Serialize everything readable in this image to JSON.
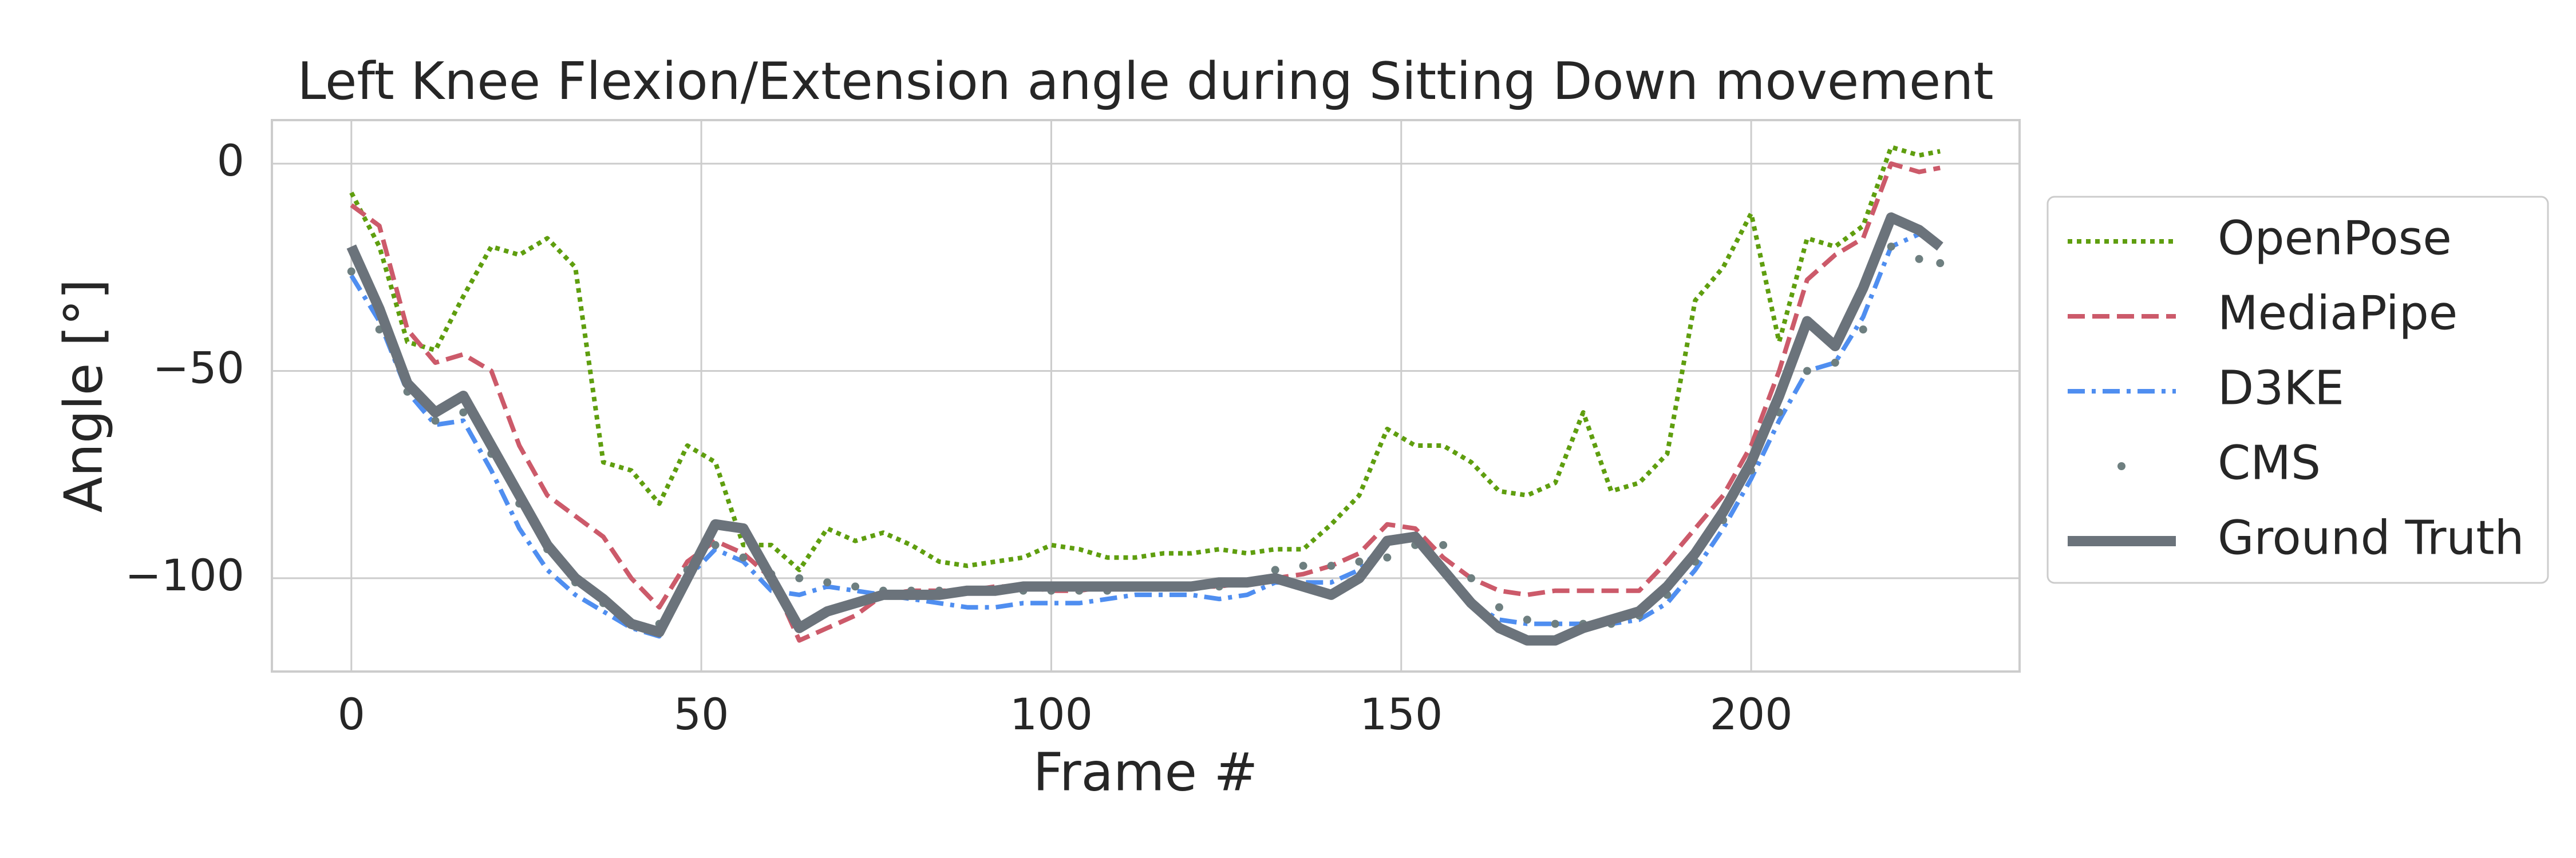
{
  "chart_data": {
    "type": "line",
    "title": "Left Knee Flexion/Extension angle during Sitting Down movement",
    "xlabel": "Frame #",
    "ylabel": "Angle [°]",
    "xlim": [
      -11.35,
      238.35
    ],
    "ylim": [
      -122.5,
      10.5
    ],
    "xticks": [
      0,
      50,
      100,
      150,
      200
    ],
    "yticks": [
      0,
      {
        "value": -50,
        "label": "−50"
      },
      {
        "value": -100,
        "label": "−100"
      }
    ],
    "grid": true,
    "legend": "outside right",
    "x": [
      0,
      4,
      8,
      12,
      16,
      20,
      24,
      28,
      32,
      36,
      40,
      44,
      48,
      52,
      56,
      60,
      64,
      68,
      72,
      76,
      80,
      84,
      88,
      92,
      96,
      100,
      104,
      108,
      112,
      116,
      120,
      124,
      128,
      132,
      136,
      140,
      144,
      148,
      152,
      156,
      160,
      164,
      168,
      172,
      176,
      180,
      184,
      188,
      192,
      196,
      200,
      204,
      208,
      212,
      216,
      220,
      224,
      227
    ],
    "series": [
      {
        "name": "OpenPose",
        "color": "#5f9e0f",
        "linestyle": "dotted",
        "values": [
          -7,
          -20,
          -43,
          -45,
          -32,
          -20,
          -22,
          -18,
          -25,
          -72,
          -74,
          -82,
          -68,
          -72,
          -92,
          -92,
          -98,
          -88,
          -91,
          -89,
          -92,
          -96,
          -97,
          -96,
          -95,
          -92,
          -93,
          -95,
          -95,
          -94,
          -94,
          -93,
          -94,
          -93,
          -93,
          -87,
          -80,
          -64,
          -68,
          -68,
          -72,
          -79,
          -80,
          -77,
          -60,
          -79,
          -77,
          -70,
          -33,
          -25,
          -12,
          -43,
          -18,
          -20,
          -15,
          4,
          2,
          3
        ]
      },
      {
        "name": "MediaPipe",
        "color": "#cc5a6a",
        "linestyle": "dashed",
        "values": [
          -10,
          -15,
          -40,
          -48,
          -46,
          -50,
          -68,
          -80,
          -85,
          -90,
          -100,
          -107,
          -96,
          -91,
          -94,
          -100,
          -115,
          -112,
          -109,
          -104,
          -103,
          -103,
          -103,
          -102,
          -102,
          -103,
          -103,
          -102,
          -102,
          -102,
          -102,
          -102,
          -101,
          -100,
          -99,
          -97,
          -94,
          -87,
          -88,
          -95,
          -100,
          -103,
          -104,
          -103,
          -103,
          -103,
          -103,
          -96,
          -88,
          -80,
          -68,
          -50,
          -28,
          -22,
          -18,
          0,
          -2,
          -1
        ]
      },
      {
        "name": "D3KE",
        "color": "#4f8ef0",
        "linestyle": "dashdot",
        "values": [
          -27,
          -38,
          -55,
          -63,
          -62,
          -74,
          -88,
          -98,
          -104,
          -108,
          -112,
          -114,
          -100,
          -93,
          -96,
          -103,
          -104,
          -102,
          -103,
          -104,
          -105,
          -106,
          -107,
          -107,
          -106,
          -106,
          -106,
          -105,
          -104,
          -104,
          -104,
          -105,
          -104,
          -101,
          -101,
          -101,
          -98,
          -91,
          -90,
          -98,
          -106,
          -110,
          -111,
          -111,
          -111,
          -111,
          -110,
          -106,
          -98,
          -88,
          -76,
          -62,
          -50,
          -48,
          -37,
          -20,
          -17,
          -20
        ]
      },
      {
        "name": "CMS",
        "color": "#6e7f80",
        "linestyle": "dots",
        "values": [
          -26,
          -40,
          -55,
          -62,
          -60,
          -70,
          -82,
          -93,
          -101,
          -106,
          -111,
          -111,
          -98,
          -92,
          -95,
          -99,
          -100,
          -101,
          -102,
          -103,
          -103,
          -103,
          -103,
          -103,
          -103,
          -103,
          -103,
          -103,
          -102,
          -102,
          -102,
          -102,
          -101,
          -98,
          -97,
          -97,
          -96,
          -95,
          -92,
          -92,
          -100,
          -107,
          -110,
          -111,
          -111,
          -111,
          -109,
          -104,
          -96,
          -86,
          -74,
          -60,
          -50,
          -48,
          -40,
          -20,
          -23,
          -24
        ]
      },
      {
        "name": "Ground Truth",
        "color": "#6b737b",
        "linestyle": "solid",
        "values": [
          -20,
          -35,
          -53,
          -60,
          -56,
          -68,
          -80,
          -92,
          -100,
          -105,
          -111,
          -113,
          -100,
          -87,
          -88,
          -100,
          -112,
          -108,
          -106,
          -104,
          -104,
          -104,
          -103,
          -103,
          -102,
          -102,
          -102,
          -102,
          -102,
          -102,
          -102,
          -101,
          -101,
          -100,
          -102,
          -104,
          -100,
          -91,
          -90,
          -98,
          -106,
          -112,
          -115,
          -115,
          -112,
          -110,
          -108,
          -102,
          -94,
          -84,
          -72,
          -56,
          -38,
          -44,
          -30,
          -13,
          -16,
          -20
        ]
      }
    ]
  }
}
